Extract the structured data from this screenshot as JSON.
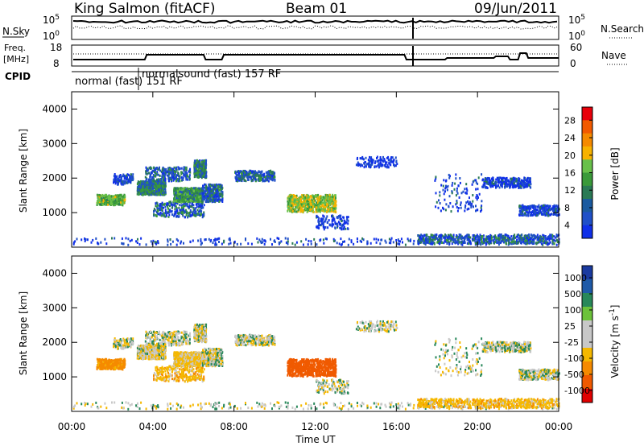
{
  "header": {
    "station": "King Salmon (fitACF)",
    "beam": "Beam 01",
    "date": "09/Jun/2011"
  },
  "top_panels": {
    "nsky_label": "N.Sky",
    "nsearch_label": "N.Search",
    "nsky_ticks": [
      "10^5",
      "10^0"
    ],
    "nsearch_ticks": [
      "10^5",
      "10^0"
    ],
    "freq_label": "Freq.",
    "freq_unit": "[MHz]",
    "freq_ticks": [
      "18",
      "8"
    ],
    "nave_label": "Nave",
    "nave_ticks": [
      "60",
      "0"
    ],
    "cpid_label": "CPID",
    "cpid_entries": [
      {
        "label": "normal (fast) 151 RF",
        "start_hour": 0.0,
        "end_hour": 3.4
      },
      {
        "label": "normalsound (fast) 157 RF",
        "start_hour": 3.4,
        "end_hour": 24.0
      }
    ]
  },
  "power_colorbar": {
    "title": "Power [dB]",
    "ticks": [
      "28",
      "24",
      "20",
      "16",
      "12",
      "8",
      "4"
    ],
    "colors": [
      "#e8000a",
      "#f25a00",
      "#f58a00",
      "#f7b200",
      "#68c04a",
      "#3a9a3a",
      "#2a7a55",
      "#1a5aa0",
      "#2050c8",
      "#1030e8"
    ]
  },
  "velocity_colorbar": {
    "title": "Velocity [m s^-1]",
    "ticks": [
      "1000",
      "500",
      "100",
      "25",
      "-25",
      "-100",
      "-500",
      "-1000"
    ],
    "colors": [
      "#1a3aa0",
      "#1e5aa8",
      "#28885a",
      "#6cc23a",
      "#c8c8c8",
      "#c8c8c8",
      "#f5b800",
      "#f58a00",
      "#f05a00",
      "#e00000"
    ]
  },
  "chart_data": {
    "type": "heatmap",
    "panels": [
      {
        "name": "power",
        "ylabel": "Slant Range [km]",
        "ylim": [
          0,
          4500
        ],
        "yticks": [
          1000,
          2000,
          3000,
          4000
        ]
      },
      {
        "name": "velocity",
        "ylabel": "Slant Range [km]",
        "ylim": [
          0,
          4500
        ],
        "yticks": [
          1000,
          2000,
          3000,
          4000
        ]
      }
    ],
    "xlabel": "Time UT",
    "xlim": [
      0,
      24
    ],
    "xticks": [
      "00:00",
      "04:00",
      "08:00",
      "12:00",
      "16:00",
      "20:00",
      "00:00"
    ],
    "scatter_regions": [
      {
        "t0": 0.0,
        "t1": 24.0,
        "r0": 50,
        "r1": 250,
        "power_db": 6,
        "velocity": 0,
        "density": "medium"
      },
      {
        "t0": 1.2,
        "t1": 2.6,
        "r0": 1200,
        "r1": 1500,
        "power_db": 14,
        "velocity": -150,
        "density": "medium"
      },
      {
        "t0": 2.0,
        "t1": 3.0,
        "r0": 1800,
        "r1": 2100,
        "power_db": 6,
        "velocity": 0,
        "density": "low"
      },
      {
        "t0": 3.2,
        "t1": 4.6,
        "r0": 1500,
        "r1": 1900,
        "power_db": 10,
        "velocity": -20,
        "density": "high"
      },
      {
        "t0": 3.6,
        "t1": 5.8,
        "r0": 1900,
        "r1": 2300,
        "power_db": 8,
        "velocity": 0,
        "density": "medium"
      },
      {
        "t0": 4.0,
        "t1": 6.5,
        "r0": 850,
        "r1": 1300,
        "power_db": 8,
        "velocity": -60,
        "density": "medium"
      },
      {
        "t0": 5.0,
        "t1": 6.4,
        "r0": 1300,
        "r1": 1700,
        "power_db": 12,
        "velocity": -40,
        "density": "high"
      },
      {
        "t0": 6.0,
        "t1": 6.6,
        "r0": 2000,
        "r1": 2500,
        "power_db": 10,
        "velocity": 0,
        "density": "medium"
      },
      {
        "t0": 6.4,
        "t1": 7.4,
        "r0": 1300,
        "r1": 1800,
        "power_db": 8,
        "velocity": 0,
        "density": "medium"
      },
      {
        "t0": 8.0,
        "t1": 10.0,
        "r0": 1900,
        "r1": 2200,
        "power_db": 8,
        "velocity": 0,
        "density": "medium"
      },
      {
        "t0": 10.6,
        "t1": 13.0,
        "r0": 1000,
        "r1": 1500,
        "power_db": 16,
        "velocity": -400,
        "density": "high"
      },
      {
        "t0": 12.0,
        "t1": 13.6,
        "r0": 500,
        "r1": 900,
        "power_db": 6,
        "velocity": 0,
        "density": "low"
      },
      {
        "t0": 14.0,
        "t1": 16.0,
        "r0": 2300,
        "r1": 2600,
        "power_db": 5,
        "velocity": 0,
        "density": "low"
      },
      {
        "t0": 17.8,
        "t1": 20.2,
        "r0": 1000,
        "r1": 2100,
        "power_db": 6,
        "velocity": 0,
        "density": "low"
      },
      {
        "t0": 20.2,
        "t1": 22.6,
        "r0": 1700,
        "r1": 2000,
        "power_db": 6,
        "velocity": 0,
        "density": "medium"
      },
      {
        "t0": 22.0,
        "t1": 24.0,
        "r0": 900,
        "r1": 1200,
        "power_db": 6,
        "velocity": 0,
        "density": "medium"
      },
      {
        "t0": 17.0,
        "t1": 24.0,
        "r0": 80,
        "r1": 350,
        "power_db": 8,
        "velocity": -60,
        "density": "high"
      }
    ]
  }
}
